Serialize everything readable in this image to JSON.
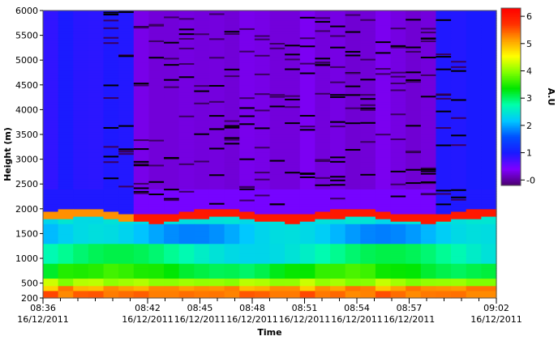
{
  "chart_data": {
    "type": "heatmap",
    "title": "",
    "xlabel": "Time",
    "ylabel": "Height (m)",
    "colorbar_label": "A.U",
    "x_ticks": [
      {
        "time": "08:36",
        "date": "16/12/2011"
      },
      {
        "time": "08:42",
        "date": "16/12/2011"
      },
      {
        "time": "08:45",
        "date": "16/12/2011"
      },
      {
        "time": "08:48",
        "date": "16/12/2011"
      },
      {
        "time": "08:51",
        "date": "16/12/2011"
      },
      {
        "time": "08:54",
        "date": "16/12/2011"
      },
      {
        "time": "08:57",
        "date": "16/12/2011"
      },
      {
        "time": "09:02",
        "date": "16/12/2011"
      }
    ],
    "x_tick_minutes": [
      0,
      6,
      9,
      12,
      15,
      18,
      21,
      26
    ],
    "x_range_minutes": [
      0,
      26
    ],
    "y_ticks": [
      200,
      500,
      1000,
      1500,
      2000,
      2500,
      3000,
      3500,
      4000,
      4500,
      5000,
      5500,
      6000
    ],
    "ylim": [
      200,
      6000
    ],
    "colorbar_ticks": [
      0,
      1,
      2,
      3,
      4,
      5,
      6
    ],
    "colorbar_tick_labels": [
      "-0",
      "1",
      "2",
      "3",
      "4",
      "5",
      "6"
    ],
    "colorbar_range": [
      -0.2,
      6.3
    ],
    "colormap": [
      "#4b006e",
      "#8000ff",
      "#1a1aff",
      "#0050ff",
      "#00c8ff",
      "#00ffaa",
      "#00e600",
      "#80ff00",
      "#ffff00",
      "#ffa000",
      "#ff3000",
      "#ff0000"
    ],
    "profile_summary": [
      {
        "height_range": [
          200,
          450
        ],
        "value": 5.5
      },
      {
        "height_range": [
          450,
          600
        ],
        "value": 4.5
      },
      {
        "height_range": [
          600,
          1100
        ],
        "value": 3.2
      },
      {
        "height_range": [
          1100,
          1500
        ],
        "value": 2.6
      },
      {
        "height_range": [
          1500,
          1800
        ],
        "value": 2.2
      },
      {
        "height_range": [
          1800,
          1950
        ],
        "value": 6.0
      },
      {
        "height_range": [
          1950,
          6000
        ],
        "value": 0.7
      }
    ]
  }
}
